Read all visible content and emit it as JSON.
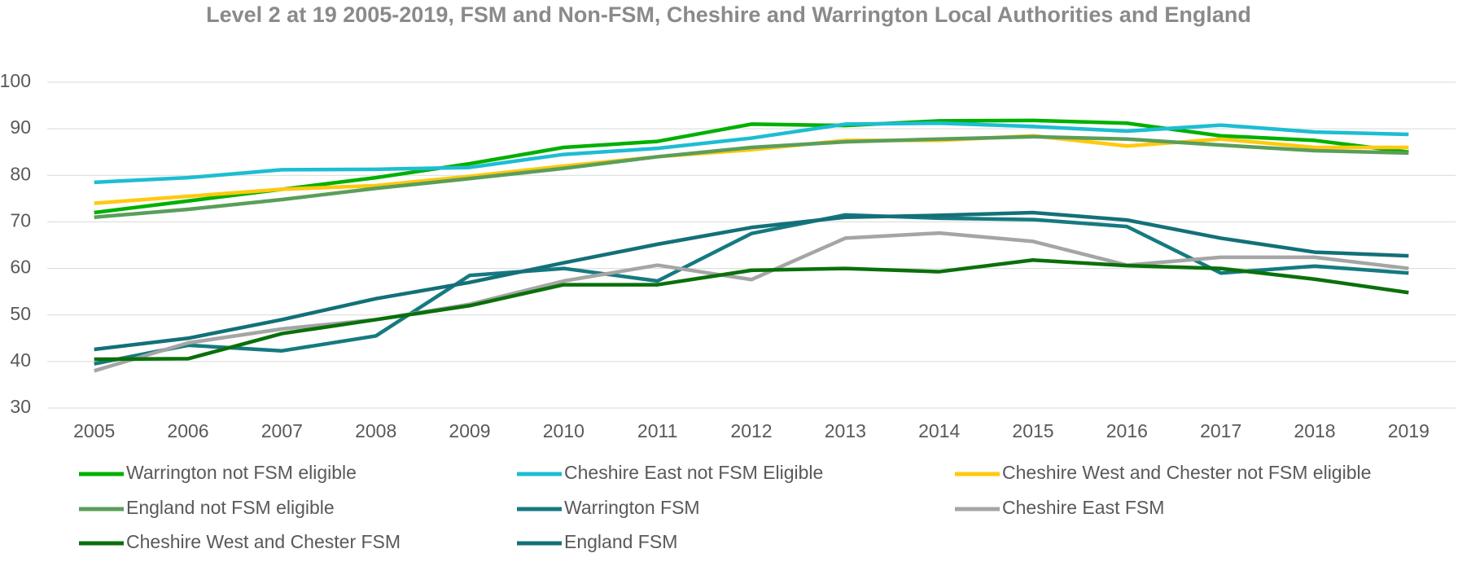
{
  "chart_data": {
    "type": "line",
    "title": "Level 2 at 19 2005-2019, FSM and Non-FSM, Cheshire and Warrington Local Authorities and England",
    "categories": [
      "2005",
      "2006",
      "2007",
      "2008",
      "2009",
      "2010",
      "2011",
      "2012",
      "2013",
      "2014",
      "2015",
      "2016",
      "2017",
      "2018",
      "2019"
    ],
    "ylim": [
      30,
      100
    ],
    "yticks": [
      30,
      40,
      50,
      60,
      70,
      80,
      90,
      100
    ],
    "grid": true,
    "legend": "bottom",
    "series": [
      {
        "name": "Warrington not FSM eligible",
        "color": "#00b000",
        "values": [
          72,
          74.5,
          77,
          79.5,
          82.5,
          86,
          87.3,
          91,
          90.7,
          91.7,
          91.8,
          91.2,
          88.5,
          87.5,
          85
        ]
      },
      {
        "name": "Cheshire East not FSM Eligible",
        "color": "#1dbdd2",
        "values": [
          78.5,
          79.5,
          81.2,
          81.3,
          81.7,
          84.5,
          85.8,
          88,
          91,
          91.2,
          90.5,
          89.5,
          90.8,
          89.3,
          88.8
        ]
      },
      {
        "name": "Cheshire West and Chester not FSM eligible",
        "color": "#ffc90e",
        "values": [
          74,
          75.5,
          77,
          77.8,
          79.8,
          82,
          84,
          85.5,
          87.5,
          87.5,
          88.5,
          86.3,
          87.8,
          86,
          86
        ]
      },
      {
        "name": "England not FSM eligible",
        "color": "#5a9e5a",
        "values": [
          71,
          72.7,
          74.8,
          77.2,
          79.3,
          81.5,
          84,
          86,
          87.2,
          87.8,
          88.3,
          87.8,
          86.5,
          85.3,
          84.8
        ]
      },
      {
        "name": "Warrington FSM",
        "color": "#157a80",
        "values": [
          39.5,
          43.5,
          42.3,
          45.5,
          58.5,
          60,
          57.3,
          67.5,
          71.5,
          70.8,
          70.5,
          69,
          59,
          60.5,
          59
        ]
      },
      {
        "name": "Cheshire East FSM",
        "color": "#a5a5a5",
        "values": [
          38,
          44,
          47,
          49,
          52.3,
          57.3,
          60.7,
          57.6,
          66.5,
          67.6,
          65.8,
          60.7,
          62.4,
          62.4,
          60
        ]
      },
      {
        "name": "Cheshire West and Chester FSM",
        "color": "#0a700a",
        "values": [
          40.5,
          40.6,
          46,
          49,
          52,
          56.5,
          56.5,
          59.6,
          60,
          59.3,
          61.8,
          60.6,
          60,
          57.7,
          54.8
        ]
      },
      {
        "name": "England FSM",
        "color": "#137078",
        "values": [
          42.6,
          45,
          49,
          53.5,
          57,
          61.2,
          65.2,
          68.8,
          71,
          71.4,
          72,
          70.4,
          66.5,
          63.5,
          62.7
        ]
      }
    ]
  }
}
